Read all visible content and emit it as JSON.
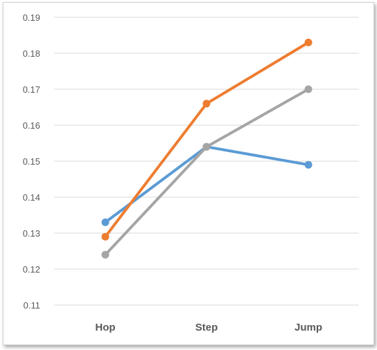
{
  "chart_data": {
    "type": "line",
    "categories": [
      "Hop",
      "Step",
      "Jump"
    ],
    "series": [
      {
        "values": [
          0.133,
          0.154,
          0.149
        ],
        "color": "#5B9BD5"
      },
      {
        "values": [
          0.129,
          0.166,
          0.183
        ],
        "color": "#ED7D31"
      },
      {
        "values": [
          0.124,
          0.154,
          0.17
        ],
        "color": "#A5A5A5"
      }
    ],
    "yticks": [
      "0.11",
      "0.12",
      "0.13",
      "0.14",
      "0.15",
      "0.16",
      "0.17",
      "0.18",
      "0.19"
    ],
    "ylim": [
      0.11,
      0.19
    ],
    "grid": true,
    "legend": "none",
    "title": "",
    "xlabel": "",
    "ylabel": ""
  }
}
